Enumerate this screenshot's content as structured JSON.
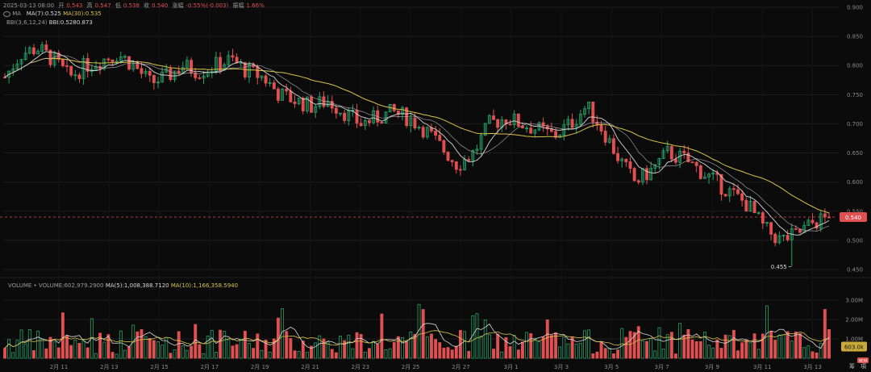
{
  "header": {
    "date": "2025-03-13 08:00",
    "open_label": "开",
    "open": "0.543",
    "high_label": "高",
    "high": "0.547",
    "low_label": "低",
    "low": "0.538",
    "close_label": "收",
    "close": "0.540",
    "change_label": "涨幅",
    "change": "-0.55%(-0.003)",
    "amp_label": "振幅",
    "amp": "1.66%"
  },
  "indicators": {
    "ma_title": "MA",
    "ma7": "MA(7):0.525",
    "ma30": "MA(30):0.535",
    "bbi_title": "BBI(3,6,12,24)",
    "bbi": "BBI:0.528",
    "overlap_value": "0.873"
  },
  "volume": {
    "title": "VOLUME",
    "volume": "VOLUME:602,979.2900",
    "ma5": "MA(5):1,008,388.7120",
    "ma10": "MA(10):1,166,358.5940"
  },
  "markers": {
    "current_price": "0.540",
    "current_volume": "603.0k",
    "low_annotation": "0.455",
    "new_badge": "NEW"
  },
  "footer": {
    "btn1": "筹",
    "btn2": "項"
  },
  "colors": {
    "background": "#0b0b0c",
    "up": "#26a269",
    "down": "#e05050",
    "ma_white": "#d8d8d8",
    "ma_yellow": "#d9c24a",
    "grid": "#1c1c1f"
  },
  "chart_data": {
    "type": "candlestick",
    "ylim": [
      0.45,
      0.9
    ],
    "price_ticks": [
      "0.900",
      "0.850",
      "0.800",
      "0.750",
      "0.700",
      "0.650",
      "0.600",
      "0.550",
      "0.500",
      "0.450"
    ],
    "volume_ticks": [
      "3.00M",
      "2.00M",
      "1.00M"
    ],
    "x_ticks": [
      "2月 11",
      "2月 13",
      "2月 15",
      "2月 17",
      "2月 19",
      "2月 21",
      "2月 23",
      "2月 25",
      "2月 27",
      "3月 1",
      "3月 3",
      "3月 5",
      "3月 7",
      "3月 9",
      "3月 11",
      "3月 13"
    ],
    "close_anchors": [
      0.78,
      0.82,
      0.83,
      0.81,
      0.78,
      0.8,
      0.81,
      0.82,
      0.8,
      0.77,
      0.78,
      0.8,
      0.79,
      0.8,
      0.81,
      0.79,
      0.78,
      0.75,
      0.74,
      0.73,
      0.74,
      0.72,
      0.7,
      0.71,
      0.72,
      0.71,
      0.69,
      0.66,
      0.63,
      0.65,
      0.7,
      0.71,
      0.7,
      0.69,
      0.68,
      0.7,
      0.73,
      0.69,
      0.64,
      0.6,
      0.62,
      0.65,
      0.64,
      0.62,
      0.6,
      0.58,
      0.56,
      0.52,
      0.5,
      0.51,
      0.53,
      0.54
    ],
    "last_price": 0.54,
    "low_point": 0.455
  }
}
